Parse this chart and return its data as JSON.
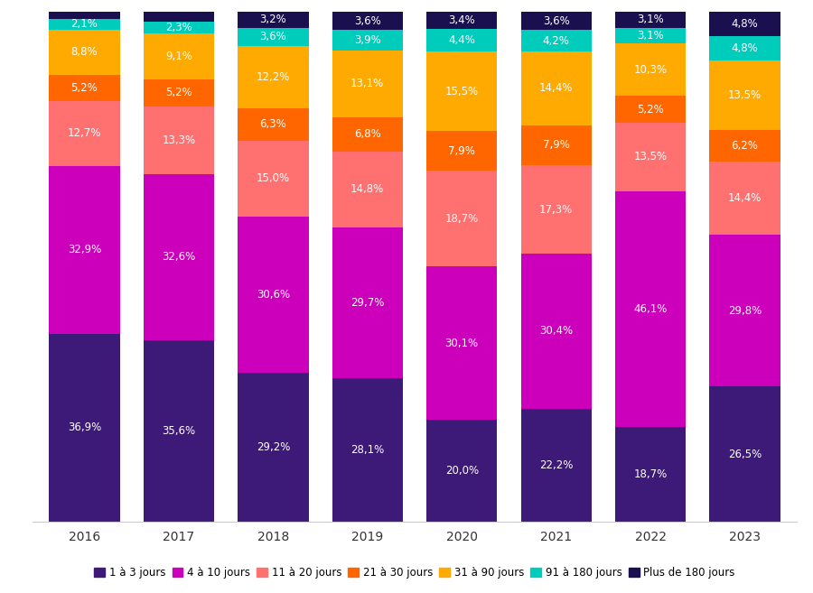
{
  "years": [
    "2016",
    "2017",
    "2018",
    "2019",
    "2020",
    "2021",
    "2022",
    "2023"
  ],
  "categories": [
    "1 à 3 jours",
    "4 à 10 jours",
    "11 à 20 jours",
    "21 à 30 jours",
    "31 à 90 jours",
    "91 à 180 jours",
    "Plus de 180 jours"
  ],
  "colors": [
    "#3d1a78",
    "#cc00bb",
    "#ff7070",
    "#ff6600",
    "#ffaa00",
    "#00ccbb",
    "#1a1050"
  ],
  "values": {
    "1 à 3 jours": [
      36.9,
      35.6,
      29.2,
      28.1,
      20.0,
      22.2,
      18.7,
      26.5
    ],
    "4 à 10 jours": [
      32.9,
      32.6,
      30.6,
      29.7,
      30.1,
      30.4,
      46.1,
      29.8
    ],
    "11 à 20 jours": [
      12.7,
      13.3,
      15.0,
      14.8,
      18.7,
      17.3,
      13.5,
      14.4
    ],
    "21 à 30 jours": [
      5.2,
      5.2,
      6.3,
      6.8,
      7.9,
      7.9,
      5.2,
      6.2
    ],
    "31 à 90 jours": [
      8.8,
      9.1,
      12.2,
      13.1,
      15.5,
      14.4,
      10.3,
      13.5
    ],
    "91 à 180 jours": [
      2.1,
      2.3,
      3.6,
      3.9,
      4.4,
      4.2,
      3.1,
      4.8
    ],
    "Plus de 180 jours": [
      1.4,
      1.9,
      3.2,
      3.6,
      3.4,
      3.6,
      3.1,
      4.8
    ]
  },
  "bar_width": 0.75,
  "figsize": [
    9.0,
    6.57
  ],
  "dpi": 100,
  "background_color": "#ffffff",
  "fontsize_bar": 8.5,
  "fontsize_legend": 8.5,
  "fontsize_tick": 10,
  "ylim": [
    0,
    100
  ]
}
